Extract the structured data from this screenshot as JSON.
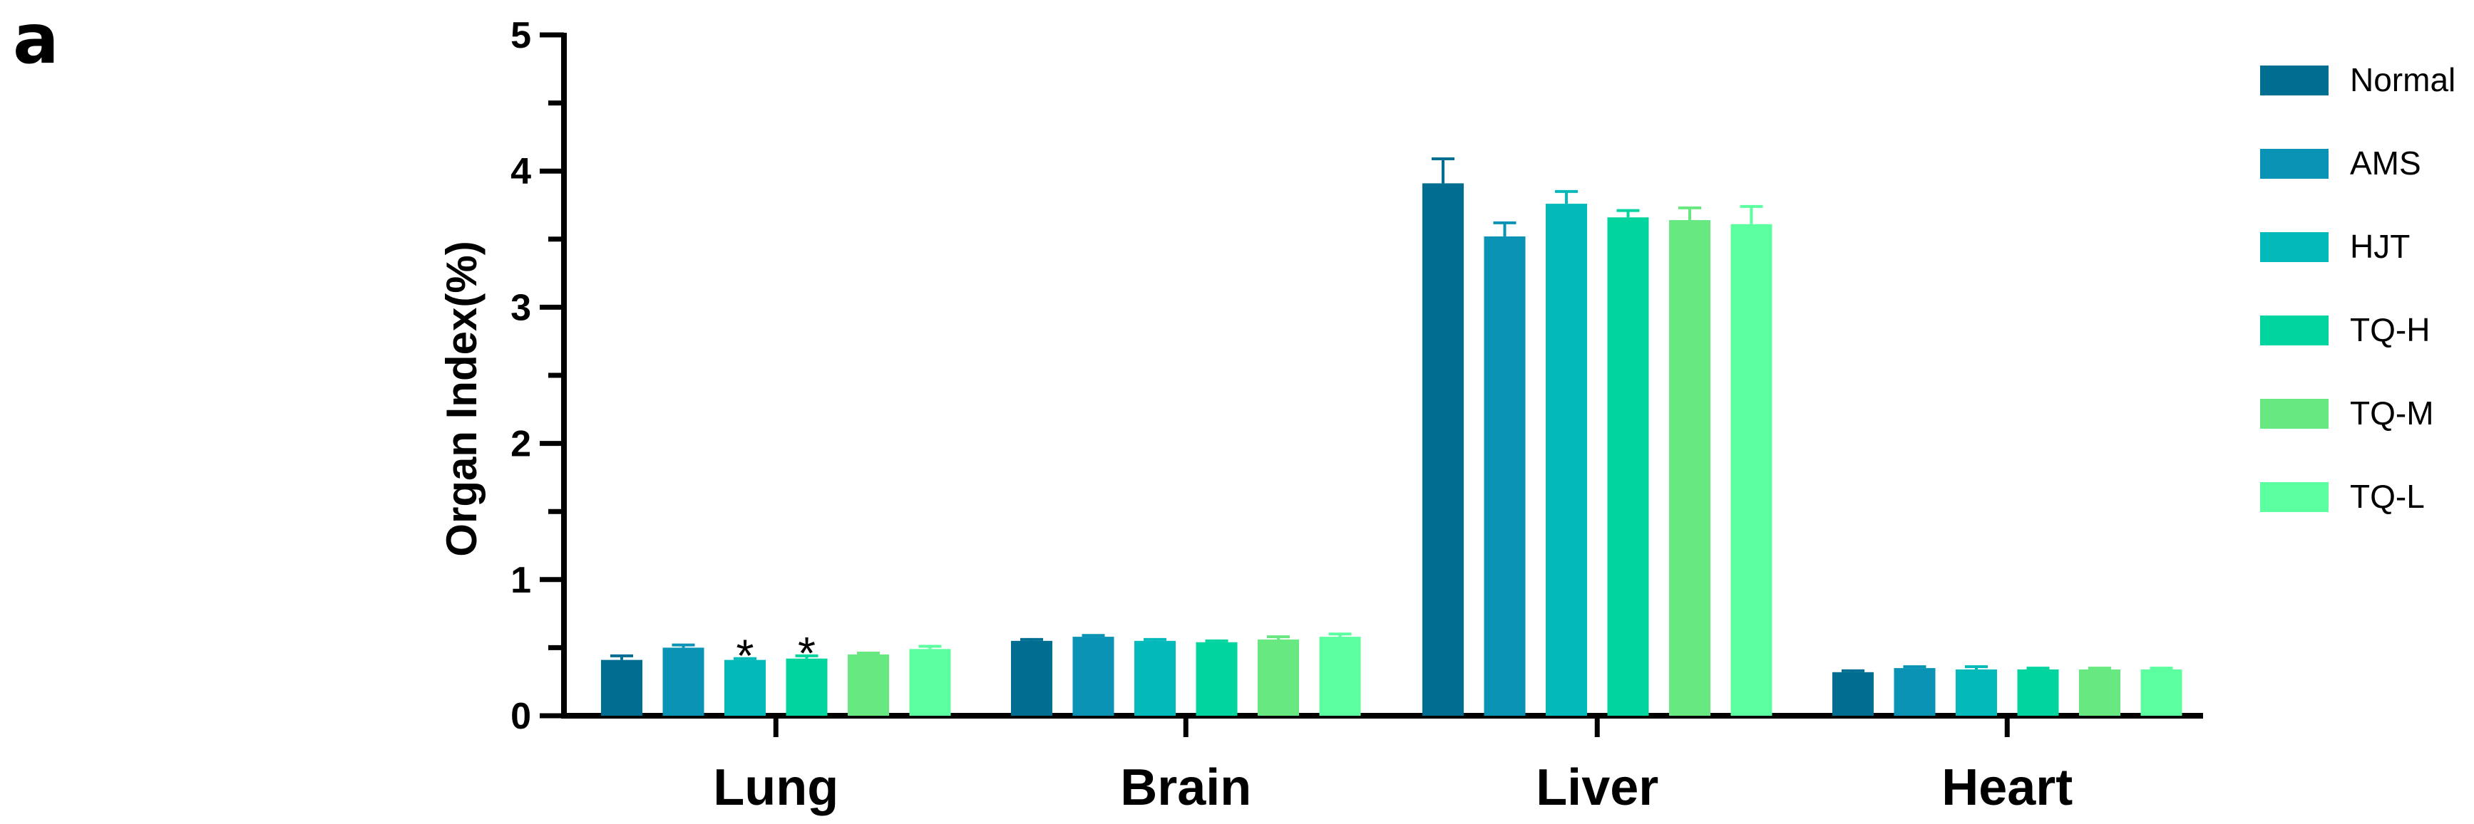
{
  "panel_label": "a",
  "chart_data": {
    "type": "bar",
    "title": "",
    "xlabel": "",
    "ylabel": "Organ Index(%)",
    "ylim": [
      0,
      5
    ],
    "yticks": [
      "0",
      "1",
      "2",
      "3",
      "4",
      "5"
    ],
    "grid": false,
    "legend_position": "right",
    "categories": [
      "Lung",
      "Brain",
      "Liver",
      "Heart"
    ],
    "series": [
      {
        "name": "Normal",
        "color": "#006E91",
        "values": [
          0.41,
          0.55,
          3.91,
          0.32
        ],
        "errors": [
          0.03,
          0.01,
          0.18,
          0.01
        ]
      },
      {
        "name": "AMS",
        "color": "#0A93B5",
        "values": [
          0.5,
          0.58,
          3.52,
          0.35
        ],
        "errors": [
          0.02,
          0.01,
          0.1,
          0.01
        ]
      },
      {
        "name": "HJT",
        "color": "#03B9BA",
        "values": [
          0.41,
          0.55,
          3.76,
          0.34
        ],
        "errors": [
          0.01,
          0.01,
          0.09,
          0.02
        ]
      },
      {
        "name": "TQ-H",
        "color": "#02D4A0",
        "values": [
          0.42,
          0.54,
          3.66,
          0.34
        ],
        "errors": [
          0.02,
          0.01,
          0.05,
          0.01
        ]
      },
      {
        "name": "TQ-M",
        "color": "#68E880",
        "values": [
          0.45,
          0.56,
          3.64,
          0.34
        ],
        "errors": [
          0.01,
          0.02,
          0.09,
          0.01
        ]
      },
      {
        "name": "TQ-L",
        "color": "#5CFF9F",
        "values": [
          0.49,
          0.58,
          3.61,
          0.34
        ],
        "errors": [
          0.02,
          0.02,
          0.13,
          0.01
        ]
      }
    ],
    "annotations": [
      {
        "text": "*",
        "category": "Lung",
        "series": "HJT"
      },
      {
        "text": "*",
        "category": "Lung",
        "series": "TQ-H"
      }
    ]
  }
}
